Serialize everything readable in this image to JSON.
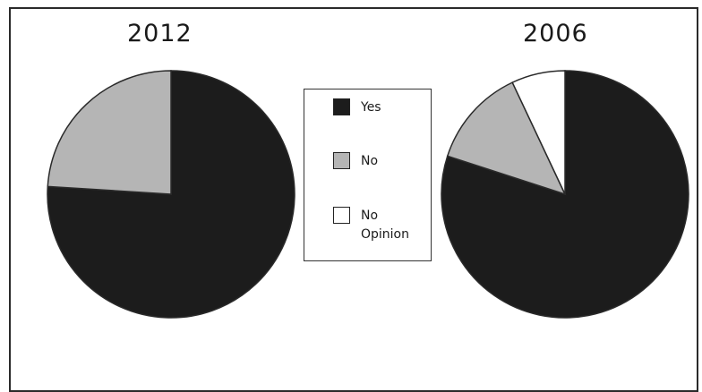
{
  "chart_data": [
    {
      "type": "pie",
      "title": "2012",
      "categories": [
        "Yes",
        "No",
        "No Opinion"
      ],
      "values": [
        76,
        24,
        0
      ],
      "legend": "center-between-charts"
    },
    {
      "type": "pie",
      "title": "2006",
      "categories": [
        "Yes",
        "No",
        "No Opinion"
      ],
      "values": [
        80,
        13,
        7
      ],
      "legend": "center-between-charts"
    }
  ],
  "legend": {
    "items": [
      {
        "label": "Yes",
        "color": "#1c1c1c"
      },
      {
        "label": "No",
        "color": "#b5b5b5"
      },
      {
        "label": "No Opinion",
        "color": "#ffffff"
      }
    ]
  },
  "colors": {
    "yes": "#1c1c1c",
    "no": "#b5b5b5",
    "no_opinion": "#ffffff",
    "stroke": "#2a2a2a"
  }
}
